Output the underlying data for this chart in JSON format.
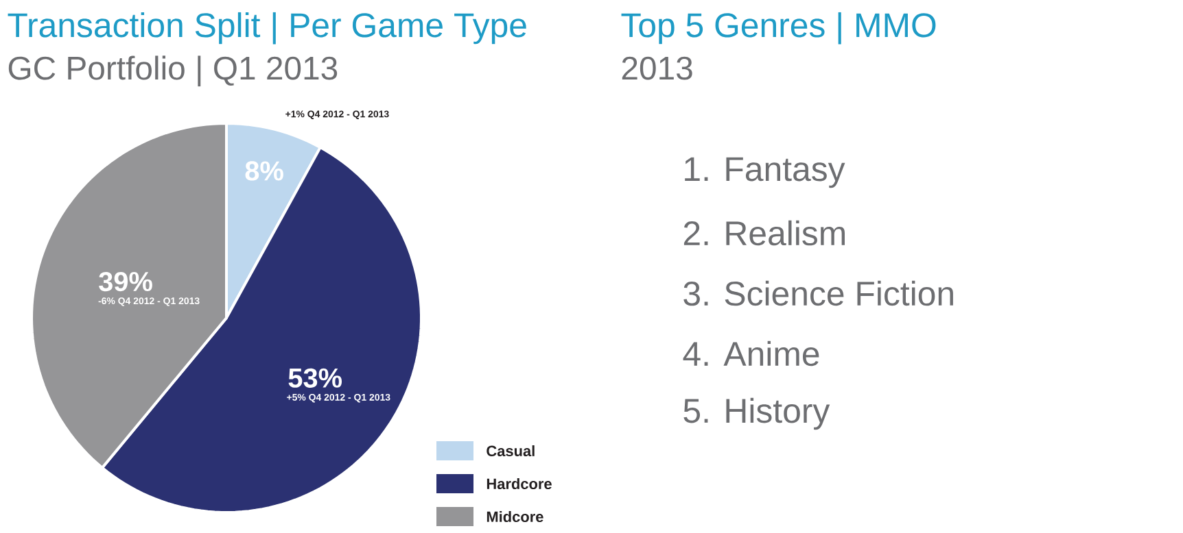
{
  "chart_data": [
    {
      "type": "pie",
      "title": "Transaction Split | Per Game Type",
      "subtitle": "GC Portfolio | Q1 2013",
      "categories": [
        "Casual",
        "Hardcore",
        "Midcore"
      ],
      "values": [
        8,
        53,
        39
      ],
      "colors": [
        "#bdd7ee",
        "#2b3172",
        "#959597"
      ],
      "value_labels": [
        "8%",
        "53%",
        "39%"
      ],
      "annotations": [
        "+1% Q4 2012 - Q1 2013",
        "+5% Q4 2012 - Q1 2013",
        "-6% Q4 2012 - Q1 2013"
      ],
      "legend": "bottom right"
    },
    {
      "type": "other",
      "title": "Top 5 Genres | MMO",
      "subtitle": "2013",
      "annotations": [
        "1. Fantasy",
        "2. Realism",
        "3. Science Fiction",
        "4. Anime",
        "5. History"
      ]
    }
  ]
}
